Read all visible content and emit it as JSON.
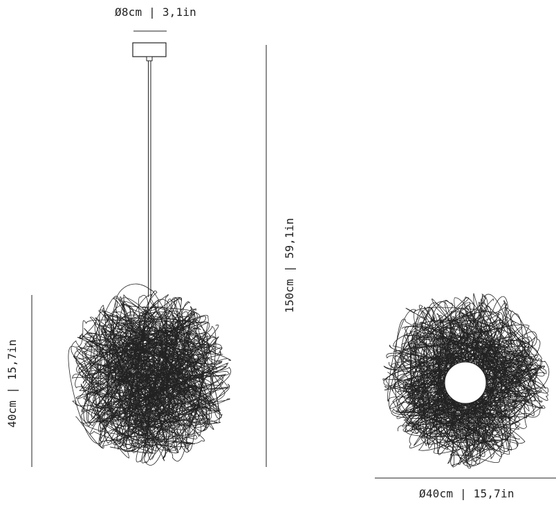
{
  "dimensions": {
    "canopy_diameter": "Ø8cm | 3,1in",
    "overall_height": "150cm | 59,1in",
    "shade_height": "40cm | 15,7in",
    "shade_diameter": "Ø40cm | 15,7in"
  },
  "colors": {
    "line": "#222222",
    "background": "#ffffff"
  }
}
